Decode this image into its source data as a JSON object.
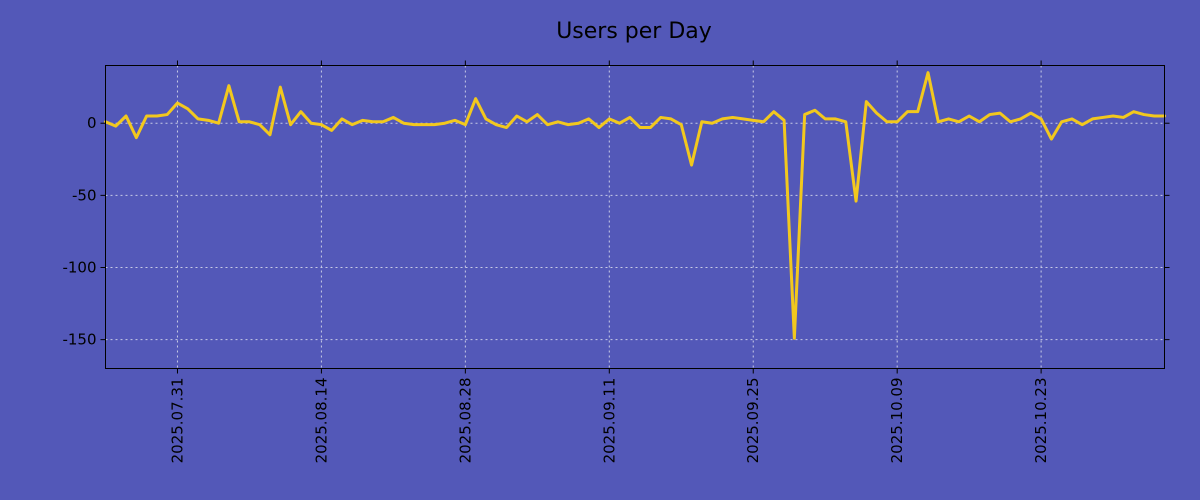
{
  "chart_data": {
    "type": "line",
    "title": "Users per Day",
    "xlabel": "",
    "ylabel": "",
    "x_start": "2025-07-24",
    "x_end": "2025-11-05",
    "xlim_days": [
      0,
      103
    ],
    "ylim": [
      -170,
      40
    ],
    "yticks": [
      0,
      -50,
      -100,
      -150
    ],
    "ytick_labels": [
      "0",
      "-50",
      "-100",
      "-150"
    ],
    "xticks_days": [
      7,
      21,
      35,
      49,
      63,
      77,
      91
    ],
    "xtick_labels": [
      "2025.07.31",
      "2025.08.14",
      "2025.08.28",
      "2025.09.11",
      "2025.09.25",
      "2025.10.09",
      "2025.10.23"
    ],
    "grid": true,
    "series": [
      {
        "name": "Users per Day",
        "color": "#f2c81e",
        "values": [
          1,
          -2,
          5,
          -10,
          5,
          5,
          6,
          14,
          10,
          3,
          2,
          0,
          26,
          1,
          1,
          -1,
          -8,
          25,
          -1,
          8,
          0,
          -1,
          -5,
          3,
          -1,
          2,
          1,
          1,
          4,
          0,
          -1,
          -1,
          -1,
          0,
          2,
          -1,
          17,
          3,
          -1,
          -3,
          5,
          1,
          6,
          -1,
          1,
          -1,
          0,
          3,
          -3,
          3,
          0,
          4,
          -3,
          -3,
          4,
          3,
          -1,
          -29,
          1,
          0,
          3,
          4,
          3,
          2,
          1,
          8,
          2,
          -149,
          6,
          9,
          3,
          3,
          1,
          -54,
          15,
          7,
          1,
          1,
          8,
          8,
          35,
          1,
          3,
          1,
          5,
          1,
          6,
          7,
          1,
          3,
          7,
          3,
          -11,
          1,
          3,
          -1,
          3,
          4,
          5,
          4,
          8,
          6,
          5,
          5
        ]
      }
    ]
  }
}
